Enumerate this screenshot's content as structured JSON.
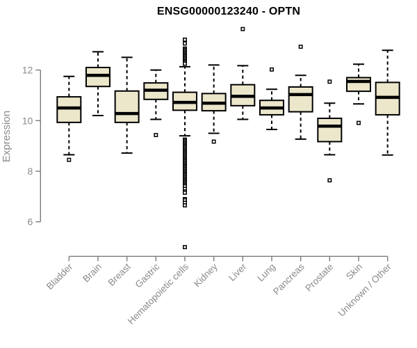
{
  "title": "ENSG00000123240 - OPTN",
  "chart_data": {
    "type": "boxplot",
    "title": "ENSG00000123240 - OPTN",
    "ylabel": "Expression",
    "xlabel": "",
    "yticks": [
      6,
      8,
      10,
      12
    ],
    "ylim_axis": [
      6,
      12
    ],
    "grid": false,
    "legend": false,
    "categories": [
      "Bladder",
      "Brain",
      "Breast",
      "Gastric",
      "Hematopoietic cells",
      "Kidney",
      "Liver",
      "Lung",
      "Pancreas",
      "Prostate",
      "Skin",
      "Unknown / Other"
    ],
    "series": [
      {
        "category": "Bladder",
        "whisker_low": 8.65,
        "q1": 9.93,
        "median": 10.5,
        "q3": 10.94,
        "whisker_high": 11.75,
        "outliers": [
          8.45
        ]
      },
      {
        "category": "Brain",
        "whisker_low": 10.2,
        "q1": 11.35,
        "median": 11.79,
        "q3": 12.1,
        "whisker_high": 12.72,
        "outliers": []
      },
      {
        "category": "Breast",
        "whisker_low": 8.72,
        "q1": 9.93,
        "median": 10.28,
        "q3": 11.17,
        "whisker_high": 12.5,
        "outliers": []
      },
      {
        "category": "Gastric",
        "whisker_low": 10.05,
        "q1": 10.84,
        "median": 11.2,
        "q3": 11.49,
        "whisker_high": 12.0,
        "outliers": [
          9.43
        ]
      },
      {
        "category": "Hematopoietic cells",
        "whisker_low": 9.4,
        "q1": 10.41,
        "median": 10.72,
        "q3": 11.12,
        "whisker_high": 12.13,
        "outliers": [
          13.2,
          13.05,
          12.85,
          12.8,
          12.75,
          12.7,
          12.65,
          12.6,
          12.55,
          12.5,
          12.45,
          12.4,
          12.35,
          12.3,
          12.25,
          9.25,
          9.2,
          9.15,
          9.1,
          9.05,
          9.0,
          8.95,
          8.9,
          8.85,
          8.8,
          8.75,
          8.7,
          8.65,
          8.6,
          8.55,
          8.5,
          8.45,
          8.4,
          8.35,
          8.3,
          8.25,
          8.2,
          8.15,
          8.1,
          8.05,
          8.0,
          7.95,
          7.9,
          7.85,
          7.8,
          7.75,
          7.7,
          7.65,
          7.6,
          7.55,
          7.5,
          7.45,
          7.4,
          7.3,
          7.2,
          7.15,
          6.9,
          6.85,
          6.75,
          6.65,
          5.0
        ]
      },
      {
        "category": "Kidney",
        "whisker_low": 9.5,
        "q1": 10.39,
        "median": 10.69,
        "q3": 11.07,
        "whisker_high": 12.2,
        "outliers": [
          9.17
        ]
      },
      {
        "category": "Liver",
        "whisker_low": 10.05,
        "q1": 10.59,
        "median": 10.96,
        "q3": 11.42,
        "whisker_high": 12.17,
        "outliers": [
          13.62
        ]
      },
      {
        "category": "Lung",
        "whisker_low": 9.65,
        "q1": 10.23,
        "median": 10.5,
        "q3": 10.8,
        "whisker_high": 11.24,
        "outliers": [
          12.02
        ]
      },
      {
        "category": "Pancreas",
        "whisker_low": 9.27,
        "q1": 10.35,
        "median": 11.03,
        "q3": 11.33,
        "whisker_high": 11.79,
        "outliers": [
          12.92
        ]
      },
      {
        "category": "Prostate",
        "whisker_low": 8.65,
        "q1": 9.17,
        "median": 9.78,
        "q3": 10.09,
        "whisker_high": 10.69,
        "outliers": [
          11.54,
          7.64
        ]
      },
      {
        "category": "Skin",
        "whisker_low": 10.66,
        "q1": 11.16,
        "median": 11.55,
        "q3": 11.7,
        "whisker_high": 12.23,
        "outliers": [
          9.91
        ]
      },
      {
        "category": "Unknown / Other",
        "whisker_low": 8.64,
        "q1": 10.23,
        "median": 10.92,
        "q3": 11.51,
        "whisker_high": 12.78,
        "outliers": []
      }
    ],
    "colors": {
      "background": "#ffffff",
      "box_fill": "#ece7cb",
      "box_border": "#000000",
      "median": "#000000",
      "whisker": "#000000",
      "outlier_border": "#000000",
      "outlier_fill": "#ffffff",
      "axis_line": "#7a7a7a",
      "tick_label": "#8a8a8a",
      "title": "#000000"
    }
  }
}
